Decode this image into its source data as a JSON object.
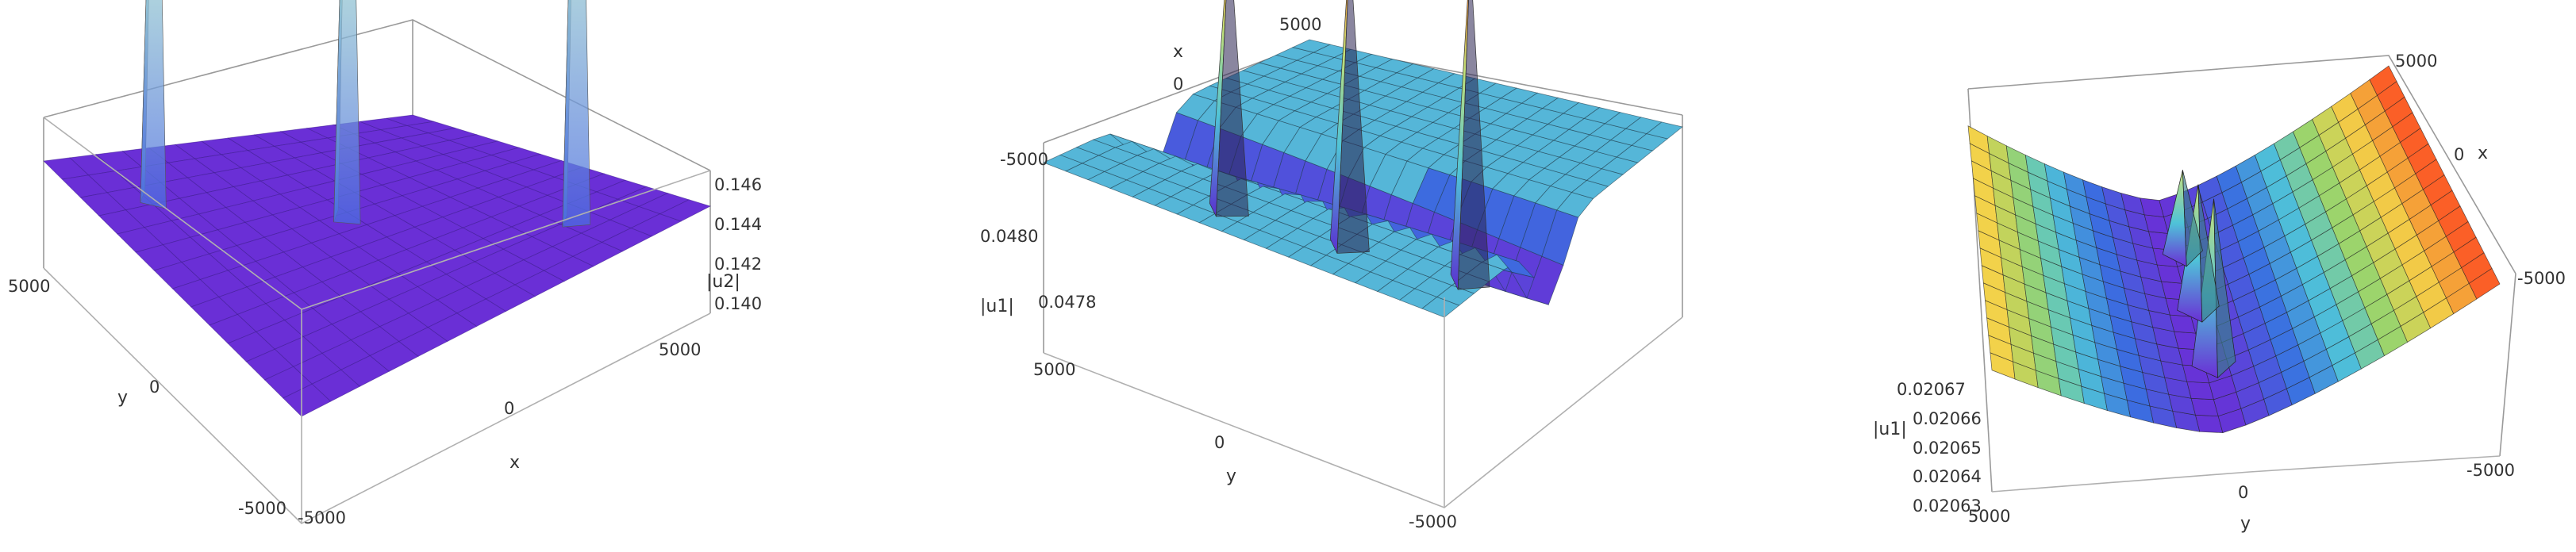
{
  "chart_data": [
    {
      "type": "surface",
      "title": "",
      "xlabel": "x",
      "ylabel": "y",
      "zlabel": "|u2|",
      "xlim": [
        -5000,
        5000
      ],
      "ylim": [
        -5000,
        5000
      ],
      "zlim": [
        0.139,
        0.147
      ],
      "x_ticks": [
        "-5000",
        "0",
        "5000"
      ],
      "y_ticks": [
        "5000",
        "0",
        "-5000"
      ],
      "z_ticks": [
        "0.140",
        "0.142",
        "0.144",
        "0.146"
      ],
      "baseline": 0.1395,
      "peaks": [
        {
          "x": -3000,
          "y": 3400,
          "z": 0.1458
        },
        {
          "x": -500,
          "y": 100,
          "z": 0.1462
        },
        {
          "x": 3000,
          "y": -3200,
          "z": 0.1468
        }
      ],
      "colors": {
        "base": "#6a2fd6",
        "peak": "#ff3b1f"
      }
    },
    {
      "type": "surface",
      "title": "",
      "xlabel": "x",
      "ylabel": "y",
      "zlabel": "|u1|",
      "xlim": [
        -5000,
        5000
      ],
      "ylim": [
        -5000,
        5000
      ],
      "zlim": [
        0.0476,
        0.0482
      ],
      "x_ticks": [
        "5000",
        "0",
        "-5000"
      ],
      "y_ticks": [
        "5000",
        "0",
        "-5000"
      ],
      "z_ticks": [
        "0.0478",
        "0.0480"
      ],
      "baseline": 0.04785,
      "peaks": [
        {
          "x": 3000,
          "y": 3000,
          "z": 0.04815
        },
        {
          "x": 0,
          "y": 0,
          "z": 0.04817
        },
        {
          "x": -3000,
          "y": -3000,
          "z": 0.0482
        }
      ],
      "colors": {
        "base": "#55b6d8",
        "peak": "#ff3b1f"
      }
    },
    {
      "type": "surface",
      "title": "",
      "xlabel": "x",
      "ylabel": "y",
      "zlabel": "|u1|",
      "xlim": [
        -5000,
        5000
      ],
      "ylim": [
        -5000,
        5000
      ],
      "zlim": [
        0.02062,
        0.02068
      ],
      "x_ticks": [
        "5000",
        "0",
        "-5000"
      ],
      "y_ticks": [
        "5000",
        "0",
        "-5000"
      ],
      "z_ticks": [
        "0.02063",
        "0.02064",
        "0.02065",
        "0.02066",
        "0.02067"
      ],
      "valley_min": 0.02063,
      "edge_max": 0.02068,
      "peaks": [
        {
          "x": 3000,
          "y": 800,
          "z": 0.02067
        },
        {
          "x": 0,
          "y": 800,
          "z": 0.02066
        },
        {
          "x": -3000,
          "y": 800,
          "z": 0.02065
        }
      ],
      "colors": {
        "low": "#6a2fd6",
        "high": "#ff3b1f"
      }
    }
  ]
}
